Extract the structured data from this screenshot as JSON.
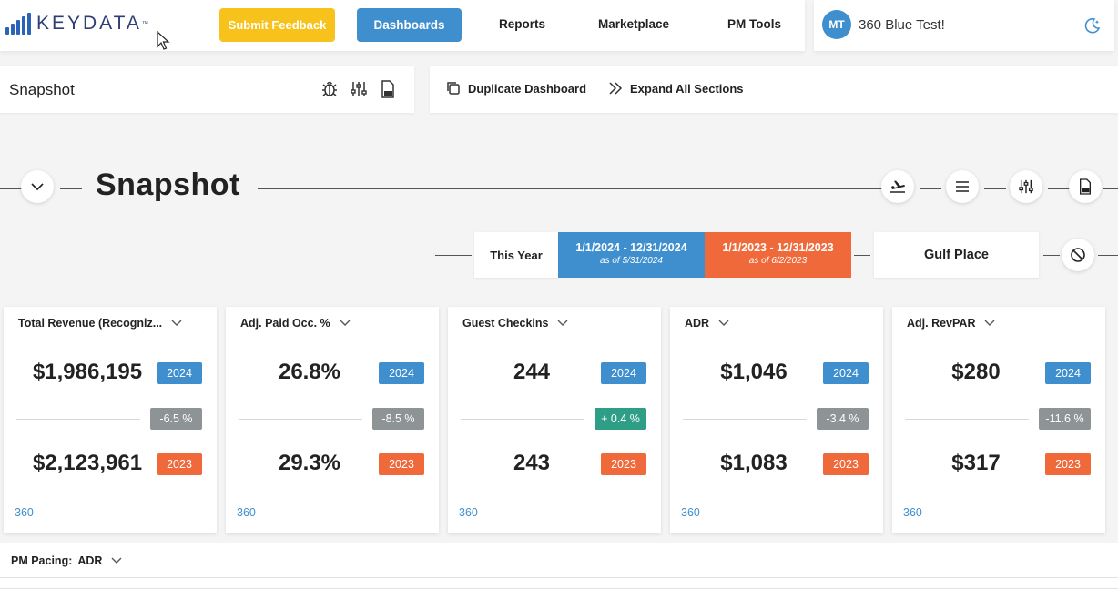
{
  "brand": {
    "name": "KEYDATA",
    "tm": "™"
  },
  "nav": {
    "feedback": "Submit Feedback",
    "dashboards": "Dashboards",
    "reports": "Reports",
    "marketplace": "Marketplace",
    "pm_tools": "PM Tools"
  },
  "user": {
    "initials": "MT",
    "name": "360 Blue Test!"
  },
  "toolbar": {
    "title": "Snapshot",
    "duplicate": "Duplicate Dashboard",
    "expand": "Expand All Sections"
  },
  "section": {
    "title": "Snapshot"
  },
  "date_range": {
    "label": "This Year",
    "current": {
      "range": "1/1/2024 - 12/31/2024",
      "as_of": "as of 5/31/2024"
    },
    "previous": {
      "range": "1/1/2023 - 12/31/2023",
      "as_of": "as of 6/2/2023"
    },
    "property": "Gulf Place"
  },
  "cards": [
    {
      "title": "Total Revenue (Recogniz...",
      "current": "$1,986,195",
      "current_year": "2024",
      "diff": "-6.5 %",
      "previous": "$2,123,961",
      "previous_year": "2023",
      "link": "360"
    },
    {
      "title": "Adj. Paid Occ. %",
      "current": "26.8%",
      "current_year": "2024",
      "diff": "-8.5 %",
      "previous": "29.3%",
      "previous_year": "2023",
      "link": "360"
    },
    {
      "title": "Guest Checkins",
      "current": "244",
      "current_year": "2024",
      "diff": "+ 0.4 %",
      "previous": "243",
      "previous_year": "2023",
      "link": "360"
    },
    {
      "title": "ADR",
      "current": "$1,046",
      "current_year": "2024",
      "diff": "-3.4 %",
      "previous": "$1,083",
      "previous_year": "2023",
      "link": "360"
    },
    {
      "title": "Adj. RevPAR",
      "current": "$280",
      "current_year": "2024",
      "diff": "-11.6 %",
      "previous": "$317",
      "previous_year": "2023",
      "link": "360"
    }
  ],
  "pacing": {
    "label": "PM Pacing:",
    "value": "ADR"
  },
  "colors": {
    "blue": "#3f8fce",
    "orange": "#f0693a",
    "yellow": "#f6c21b",
    "green": "#2f9e87",
    "gray": "#8e9396"
  }
}
